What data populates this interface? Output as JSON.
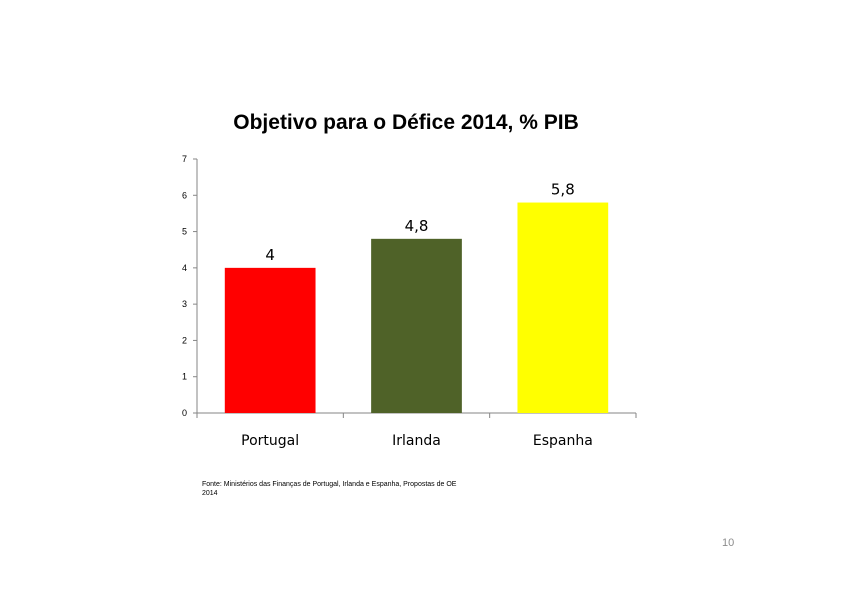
{
  "chart_data": {
    "type": "bar",
    "title": "Objetivo para o Défice 2014, % PIB",
    "categories": [
      "Portugal",
      "Irlanda",
      "Espanha"
    ],
    "values": [
      4,
      4.8,
      5.8
    ],
    "data_labels": [
      "4",
      "4,8",
      "5,8"
    ],
    "colors": [
      "#ff0000",
      "#4f6228",
      "#ffff00"
    ],
    "xlabel": "",
    "ylabel": "",
    "ylim": [
      0,
      7
    ],
    "yticks": [
      0,
      1,
      2,
      3,
      4,
      5,
      6,
      7
    ],
    "grid": false,
    "legend": "none"
  },
  "source": "Fonte: Ministérios das Finanças de Portugal, Irlanda e Espanha, Propostas de OE 2014",
  "page_number": "10"
}
